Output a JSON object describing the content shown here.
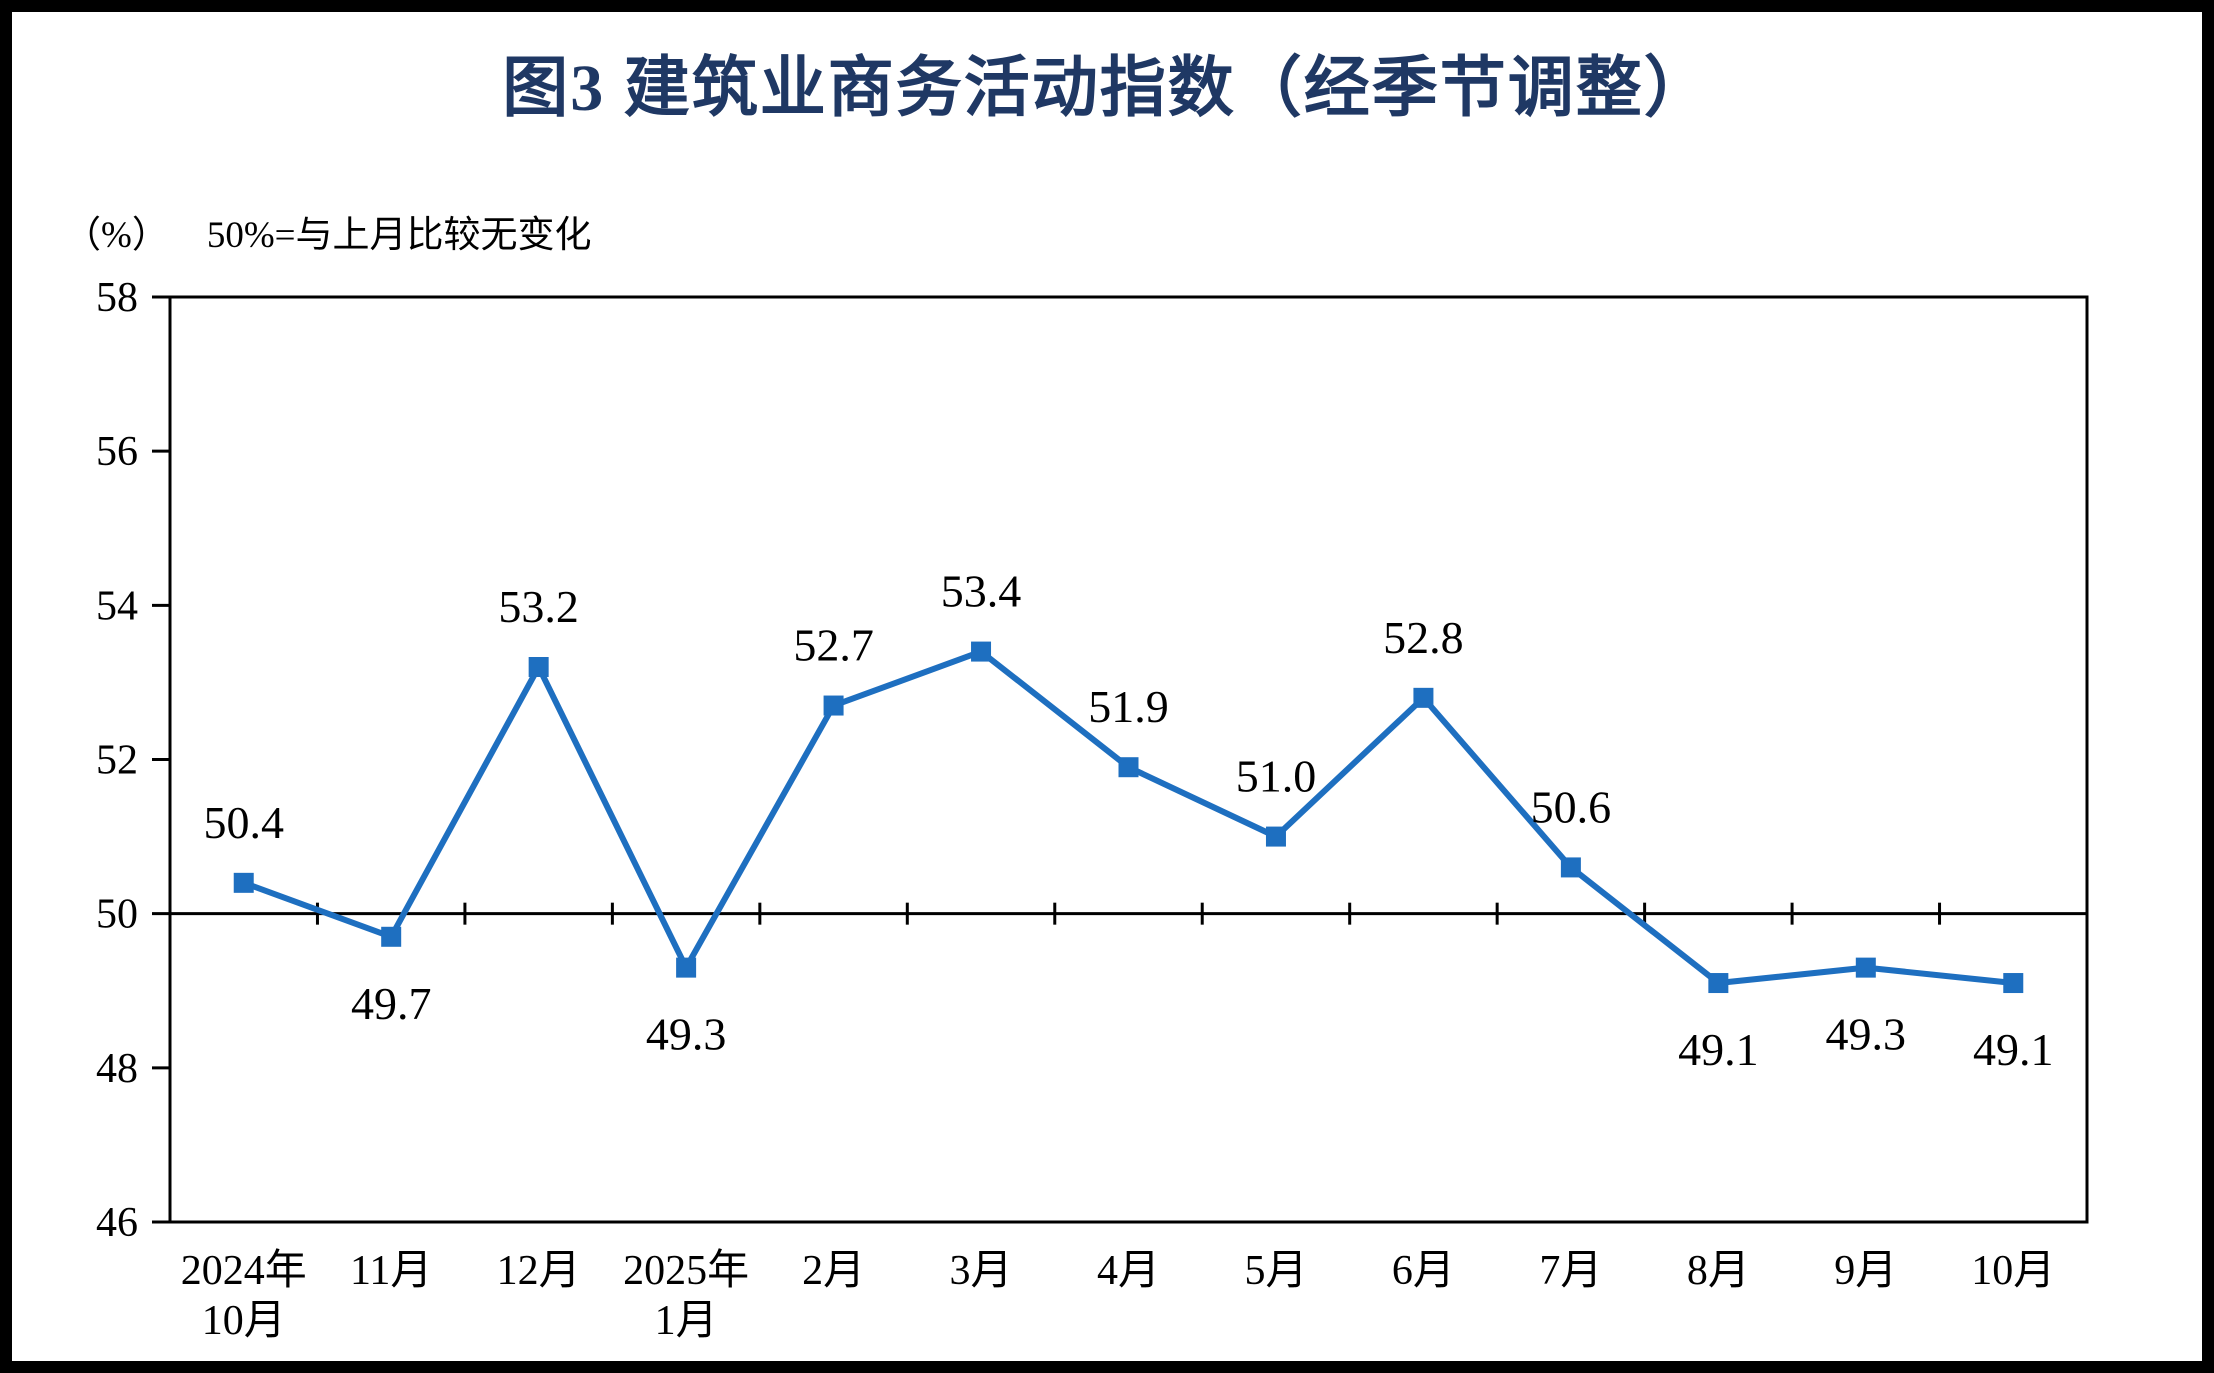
{
  "chart_data": {
    "type": "line",
    "title": "图3  建筑业商务活动指数（经季节调整）",
    "unit_label": "（%）",
    "note": "50%=与上月比较无变化",
    "categories": [
      [
        "2024年",
        "10月"
      ],
      [
        "11月"
      ],
      [
        "12月"
      ],
      [
        "2025年",
        "1月"
      ],
      [
        "2月"
      ],
      [
        "3月"
      ],
      [
        "4月"
      ],
      [
        "5月"
      ],
      [
        "6月"
      ],
      [
        "7月"
      ],
      [
        "8月"
      ],
      [
        "9月"
      ],
      [
        "10月"
      ]
    ],
    "series": [
      {
        "name": "建筑业商务活动指数",
        "values": [
          50.4,
          49.7,
          53.2,
          49.3,
          52.7,
          53.4,
          51.9,
          51.0,
          52.8,
          50.6,
          49.1,
          49.3,
          49.1
        ],
        "color": "#1E6FC0"
      }
    ],
    "ylim": [
      46,
      58
    ],
    "yticks": [
      46,
      48,
      50,
      52,
      54,
      56,
      58
    ],
    "reference_line": 50,
    "label_positions": [
      "above",
      "below",
      "above",
      "below",
      "above",
      "above",
      "above",
      "above",
      "above",
      "above",
      "below",
      "below",
      "below"
    ],
    "value_decimals": 1,
    "colors": {
      "title": "#1F3864",
      "axis": "#000000",
      "reference_line": "#000000"
    },
    "legend": "none",
    "grid": "off"
  }
}
